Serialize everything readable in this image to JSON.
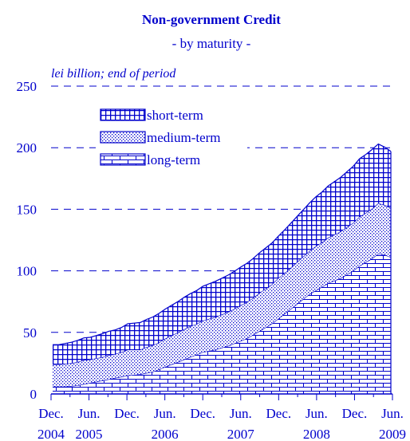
{
  "chart_data": {
    "type": "area",
    "stacked": true,
    "title": "Non-government Credit",
    "subtitle": "- by maturity -",
    "unit_note": "lei billion; end of period",
    "ylim": [
      0,
      250
    ],
    "yticks": [
      0,
      50,
      100,
      150,
      200,
      250
    ],
    "grid": "dashed horizontal",
    "legend_position": "top-left",
    "colors": {
      "ink": "#0000cc",
      "background": "#ffffff"
    },
    "x_tick_labels": [
      {
        "top": "Dec.",
        "bottom": "2004"
      },
      {
        "top": "Jun.",
        "bottom": "2005"
      },
      {
        "top": "Dec.",
        "bottom": ""
      },
      {
        "top": "Jun.",
        "bottom": "2006"
      },
      {
        "top": "Dec.",
        "bottom": ""
      },
      {
        "top": "Jun.",
        "bottom": "2007"
      },
      {
        "top": "Dec.",
        "bottom": ""
      },
      {
        "top": "Jun.",
        "bottom": "2008"
      },
      {
        "top": "Dec.",
        "bottom": ""
      },
      {
        "top": "Jun.",
        "bottom": "2009"
      }
    ],
    "x": [
      "2004-12",
      "2005-01",
      "2005-02",
      "2005-03",
      "2005-04",
      "2005-05",
      "2005-06",
      "2005-07",
      "2005-08",
      "2005-09",
      "2005-10",
      "2005-11",
      "2005-12",
      "2006-01",
      "2006-02",
      "2006-03",
      "2006-04",
      "2006-05",
      "2006-06",
      "2006-07",
      "2006-08",
      "2006-09",
      "2006-10",
      "2006-11",
      "2006-12",
      "2007-01",
      "2007-02",
      "2007-03",
      "2007-04",
      "2007-05",
      "2007-06",
      "2007-07",
      "2007-08",
      "2007-09",
      "2007-10",
      "2007-11",
      "2007-12",
      "2008-01",
      "2008-02",
      "2008-03",
      "2008-04",
      "2008-05",
      "2008-06",
      "2008-07",
      "2008-08",
      "2008-09",
      "2008-10",
      "2008-11",
      "2008-12",
      "2009-01",
      "2009-02",
      "2009-03",
      "2009-04",
      "2009-05",
      "2009-06"
    ],
    "series": [
      {
        "name": "long-term",
        "pattern": "brick",
        "values": [
          6,
          6,
          6,
          6.5,
          7,
          8,
          9,
          10,
          11,
          12,
          13,
          14,
          15,
          15.5,
          16,
          17,
          18,
          20,
          22,
          24,
          26,
          28,
          30,
          32,
          34,
          35,
          36,
          37.5,
          39,
          41,
          43,
          45,
          48,
          51,
          54,
          57,
          61,
          65,
          69,
          73,
          77,
          81,
          84,
          87,
          90,
          92,
          94,
          97,
          100,
          104,
          107,
          110,
          114,
          113,
          111
        ]
      },
      {
        "name": "medium-term",
        "pattern": "dotted",
        "values": [
          18,
          18,
          18.5,
          18.5,
          19,
          19.5,
          19,
          19,
          19,
          19.5,
          19.5,
          20,
          21,
          20.5,
          20,
          21,
          21.5,
          22,
          23,
          23.5,
          24,
          24.5,
          25,
          25,
          25.5,
          26,
          26.5,
          27,
          27.5,
          28,
          29,
          29.5,
          30,
          31,
          31.5,
          32,
          33,
          33,
          33.5,
          34,
          34.5,
          35,
          36,
          36,
          37,
          37.5,
          38,
          38.5,
          39,
          40,
          40,
          40.5,
          41,
          40.5,
          40
        ]
      },
      {
        "name": "short-term",
        "pattern": "grid",
        "values": [
          16,
          16,
          16.5,
          17,
          17.5,
          18,
          18,
          18.5,
          19,
          19.5,
          19.5,
          20,
          21,
          21.5,
          22,
          22.5,
          23,
          23.5,
          24,
          24.5,
          25,
          26,
          26.5,
          27,
          28,
          28.5,
          29,
          29.5,
          30,
          30.5,
          31,
          31.5,
          32,
          32.5,
          33,
          33.5,
          34,
          35,
          36,
          37,
          38,
          39,
          40,
          41,
          42,
          43,
          44,
          45,
          46,
          47,
          47.5,
          48,
          48,
          47,
          46
        ]
      }
    ]
  }
}
